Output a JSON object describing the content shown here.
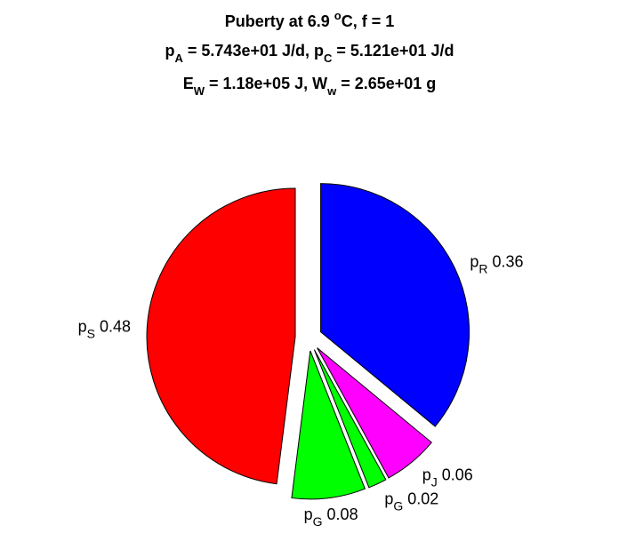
{
  "chart_data": {
    "type": "pie",
    "title": [
      [
        "Puberty at 6.9 ",
        "o",
        "C, f = 1"
      ],
      [
        "p",
        "A",
        " = 5.743e+01 J/d,  p",
        "C",
        " = 5.121e+01 J/d"
      ],
      [
        "E",
        "W",
        " = 1.18e+05 J, W",
        "w",
        " = 2.65e+01 g"
      ]
    ],
    "labels": [
      [
        "p",
        "S"
      ],
      [
        "p",
        "G"
      ],
      [
        "p",
        "G"
      ],
      [
        "p",
        "J"
      ],
      [
        "p",
        "R"
      ]
    ],
    "values": [
      0.48,
      0.08,
      0.02,
      0.06,
      0.36
    ],
    "colors": [
      "#ff0000",
      "#00ff00",
      "#00ff00",
      "#ff00ff",
      "#0000ff"
    ],
    "explode": true
  }
}
